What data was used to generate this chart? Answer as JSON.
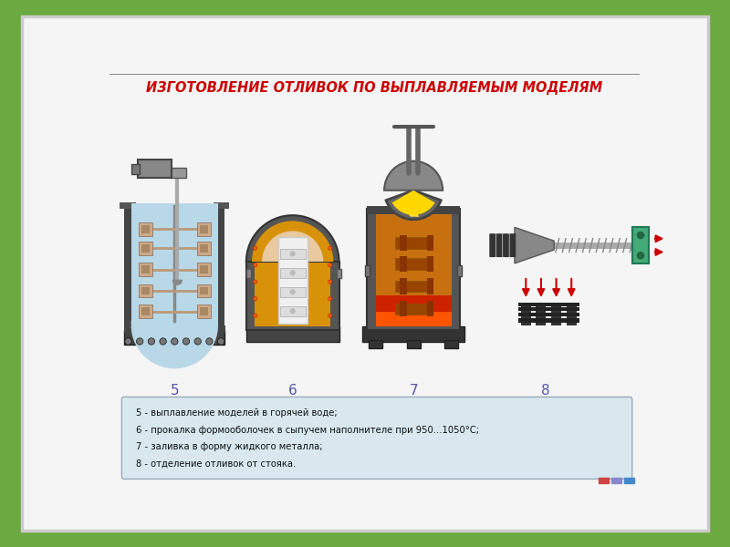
{
  "title": "ИЗГОТОВЛЕНИЕ ОТЛИВОК ПО ВЫПЛАВЛЯЕМЫМ МОДЕЛЯМ",
  "title_color": "#cc0000",
  "bg_outer": "#6aaa40",
  "bg_slide": "#f5f5f5",
  "bg_info_box": "#d8e8ee",
  "step_labels": [
    "5",
    "6",
    "7",
    "8"
  ],
  "info_lines": [
    "5 - выплавление моделей в горячей воде;",
    "6 - прокалка формооболочек в сыпучем наполнителе при 950...1050°C;",
    "7 - заливка в форму жидкого металла;",
    "8 - отделение отливок от стояка."
  ],
  "slide_border_color": "#bbbbbb"
}
